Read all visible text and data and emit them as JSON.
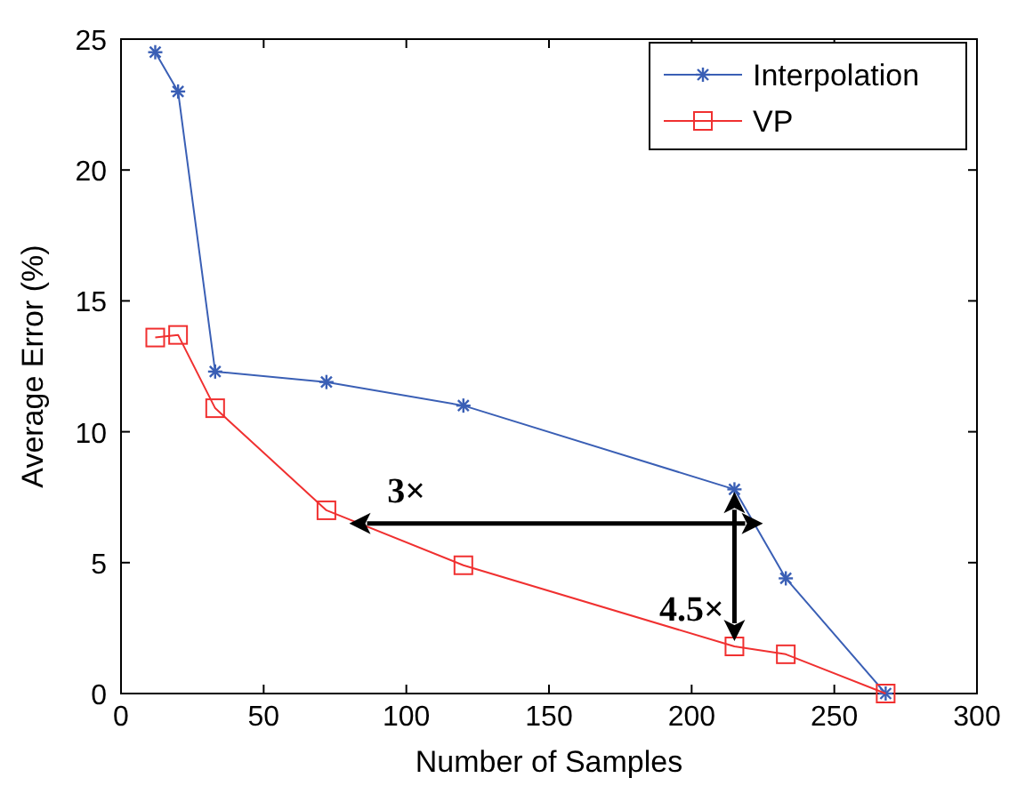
{
  "chart_data": {
    "type": "line",
    "xlabel": "Number of Samples",
    "ylabel": "Average Error (%)",
    "xlim": [
      0,
      300
    ],
    "xticks": [
      0,
      50,
      100,
      150,
      200,
      250,
      300
    ],
    "ylim": [
      0,
      25
    ],
    "yticks": [
      0,
      5,
      10,
      15,
      20,
      25
    ],
    "legend": "top right",
    "grid": false,
    "series": [
      {
        "name": "Interpolation",
        "color": "#3a5fb5",
        "marker": "cross",
        "x": [
          12,
          20,
          33,
          72,
          120,
          215,
          233,
          268
        ],
        "values": [
          24.5,
          23.0,
          12.3,
          11.9,
          11.0,
          7.8,
          4.4,
          0
        ]
      },
      {
        "name": "VP",
        "color": "#f03030",
        "marker": "square",
        "x": [
          12,
          20,
          33,
          72,
          120,
          215,
          233,
          268
        ],
        "values": [
          13.6,
          13.7,
          10.9,
          7.0,
          4.9,
          1.8,
          1.5,
          0
        ]
      }
    ],
    "annotations": [
      "3×",
      "4.5×"
    ]
  }
}
